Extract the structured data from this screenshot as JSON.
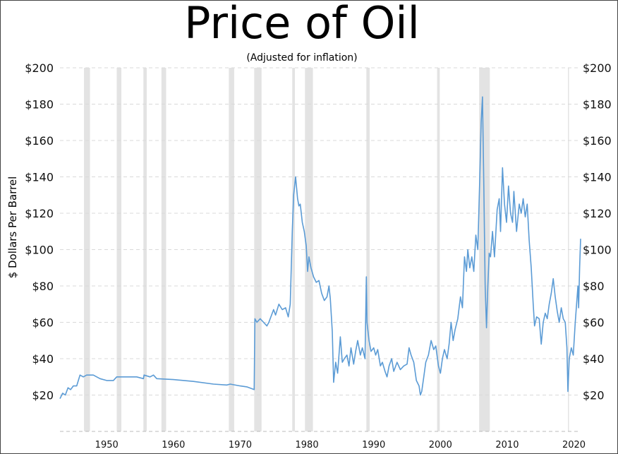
{
  "chart_data": {
    "type": "line",
    "title": "Price of Oil",
    "subtitle": "(Adjusted for inflation)",
    "ylabel": "$ Dollars Per Barrel",
    "xlabel": "",
    "xlim": [
      1943,
      2021
    ],
    "ylim": [
      0,
      200
    ],
    "y_ticks": [
      20,
      40,
      60,
      80,
      100,
      120,
      140,
      160,
      180,
      200
    ],
    "y_tick_labels": [
      "$20",
      "$40",
      "$60",
      "$80",
      "$100",
      "$120",
      "$140",
      "$160",
      "$180",
      "$200"
    ],
    "x_ticks": [
      1950,
      1960,
      1970,
      1980,
      1990,
      2000,
      2010,
      2020
    ],
    "x_tick_labels": [
      "1950",
      "1960",
      "1970",
      "1980",
      "1990",
      "2000",
      "2010",
      "2020"
    ],
    "grid": "horizontal dashed",
    "line_color": "#5b9bd5",
    "recession_color": "#e3e3e3",
    "recessions": [
      [
        1946.6,
        1947.5
      ],
      [
        1951.5,
        1952.2
      ],
      [
        1955.5,
        1956.0
      ],
      [
        1958.2,
        1958.9
      ],
      [
        1968.3,
        1969.1
      ],
      [
        1972.1,
        1973.2
      ],
      [
        1977.8,
        1978.2
      ],
      [
        1979.7,
        1980.9
      ],
      [
        1988.9,
        1989.4
      ],
      [
        1999.5,
        1999.9
      ],
      [
        2005.8,
        2007.4
      ],
      [
        2019.1,
        2019.2
      ]
    ],
    "series": [
      {
        "values": [
          [
            1943.0,
            18
          ],
          [
            1943.4,
            21
          ],
          [
            1943.8,
            20
          ],
          [
            1944.2,
            24
          ],
          [
            1944.6,
            23
          ],
          [
            1945.0,
            25
          ],
          [
            1945.5,
            25
          ],
          [
            1946.0,
            31
          ],
          [
            1946.5,
            30
          ],
          [
            1947.0,
            31
          ],
          [
            1948.0,
            31
          ],
          [
            1949.0,
            29
          ],
          [
            1950.0,
            28
          ],
          [
            1951.0,
            28
          ],
          [
            1951.5,
            30
          ],
          [
            1953.0,
            30
          ],
          [
            1954.5,
            30
          ],
          [
            1955.5,
            29
          ],
          [
            1955.6,
            31
          ],
          [
            1956.5,
            30
          ],
          [
            1957.0,
            31
          ],
          [
            1957.5,
            29
          ],
          [
            1960.0,
            28.5
          ],
          [
            1963.0,
            27.5
          ],
          [
            1966.0,
            26
          ],
          [
            1968.0,
            25.5
          ],
          [
            1968.5,
            26
          ],
          [
            1970.0,
            25
          ],
          [
            1971.0,
            24.5
          ],
          [
            1972.1,
            23
          ],
          [
            1972.2,
            62
          ],
          [
            1972.5,
            60
          ],
          [
            1973.0,
            62
          ],
          [
            1973.5,
            60
          ],
          [
            1974.0,
            58
          ],
          [
            1974.3,
            60
          ],
          [
            1975.0,
            67
          ],
          [
            1975.3,
            64
          ],
          [
            1975.8,
            70
          ],
          [
            1976.3,
            67
          ],
          [
            1976.8,
            68
          ],
          [
            1977.2,
            63
          ],
          [
            1977.5,
            70
          ],
          [
            1977.8,
            110
          ],
          [
            1978.0,
            130
          ],
          [
            1978.3,
            140
          ],
          [
            1978.6,
            128
          ],
          [
            1978.8,
            124
          ],
          [
            1979.0,
            125
          ],
          [
            1979.3,
            115
          ],
          [
            1979.6,
            110
          ],
          [
            1979.9,
            102
          ],
          [
            1980.1,
            88
          ],
          [
            1980.3,
            96
          ],
          [
            1980.6,
            90
          ],
          [
            1981.0,
            85
          ],
          [
            1981.4,
            82
          ],
          [
            1981.8,
            83
          ],
          [
            1982.2,
            76
          ],
          [
            1982.6,
            72
          ],
          [
            1983.0,
            74
          ],
          [
            1983.3,
            80
          ],
          [
            1983.5,
            73
          ],
          [
            1983.8,
            55
          ],
          [
            1984.0,
            27
          ],
          [
            1984.3,
            38
          ],
          [
            1984.6,
            32
          ],
          [
            1985.0,
            52
          ],
          [
            1985.3,
            38
          ],
          [
            1985.6,
            40
          ],
          [
            1986.0,
            42
          ],
          [
            1986.3,
            36
          ],
          [
            1986.6,
            46
          ],
          [
            1987.0,
            37
          ],
          [
            1987.3,
            44
          ],
          [
            1987.6,
            50
          ],
          [
            1988.0,
            42
          ],
          [
            1988.3,
            46
          ],
          [
            1988.7,
            40
          ],
          [
            1988.9,
            85
          ],
          [
            1989.0,
            60
          ],
          [
            1989.3,
            50
          ],
          [
            1989.6,
            44
          ],
          [
            1990.0,
            46
          ],
          [
            1990.3,
            42
          ],
          [
            1990.6,
            45
          ],
          [
            1991.0,
            36
          ],
          [
            1991.3,
            38
          ],
          [
            1991.7,
            33
          ],
          [
            1992.0,
            30
          ],
          [
            1992.3,
            36
          ],
          [
            1992.7,
            40
          ],
          [
            1993.0,
            33
          ],
          [
            1993.5,
            38
          ],
          [
            1994.0,
            34
          ],
          [
            1994.5,
            36
          ],
          [
            1995.0,
            37
          ],
          [
            1995.3,
            46
          ],
          [
            1995.6,
            42
          ],
          [
            1996.0,
            38
          ],
          [
            1996.4,
            28
          ],
          [
            1996.8,
            25
          ],
          [
            1997.0,
            20
          ],
          [
            1997.2,
            22
          ],
          [
            1997.5,
            30
          ],
          [
            1997.8,
            38
          ],
          [
            1998.2,
            42
          ],
          [
            1998.6,
            50
          ],
          [
            1999.0,
            45
          ],
          [
            1999.3,
            47
          ],
          [
            1999.7,
            36
          ],
          [
            2000.0,
            32
          ],
          [
            2000.3,
            40
          ],
          [
            2000.6,
            45
          ],
          [
            2001.0,
            40
          ],
          [
            2001.3,
            48
          ],
          [
            2001.6,
            60
          ],
          [
            2001.9,
            50
          ],
          [
            2002.2,
            56
          ],
          [
            2002.6,
            62
          ],
          [
            2003.0,
            74
          ],
          [
            2003.3,
            68
          ],
          [
            2003.6,
            96
          ],
          [
            2003.9,
            88
          ],
          [
            2004.1,
            100
          ],
          [
            2004.4,
            90
          ],
          [
            2004.7,
            96
          ],
          [
            2005.0,
            88
          ],
          [
            2005.3,
            108
          ],
          [
            2005.6,
            100
          ],
          [
            2005.9,
            140
          ],
          [
            2006.1,
            170
          ],
          [
            2006.3,
            184
          ],
          [
            2006.5,
            135
          ],
          [
            2006.7,
            80
          ],
          [
            2006.9,
            57
          ],
          [
            2007.1,
            80
          ],
          [
            2007.3,
            98
          ],
          [
            2007.5,
            96
          ],
          [
            2007.8,
            110
          ],
          [
            2008.1,
            96
          ],
          [
            2008.5,
            122
          ],
          [
            2008.8,
            128
          ],
          [
            2009.0,
            110
          ],
          [
            2009.3,
            145
          ],
          [
            2009.6,
            125
          ],
          [
            2009.9,
            115
          ],
          [
            2010.2,
            135
          ],
          [
            2010.5,
            120
          ],
          [
            2010.8,
            115
          ],
          [
            2011.0,
            132
          ],
          [
            2011.4,
            110
          ],
          [
            2011.8,
            125
          ],
          [
            2012.1,
            120
          ],
          [
            2012.4,
            128
          ],
          [
            2012.7,
            118
          ],
          [
            2013.0,
            125
          ],
          [
            2013.3,
            105
          ],
          [
            2013.6,
            90
          ],
          [
            2013.9,
            70
          ],
          [
            2014.1,
            58
          ],
          [
            2014.4,
            63
          ],
          [
            2014.8,
            62
          ],
          [
            2015.1,
            48
          ],
          [
            2015.4,
            60
          ],
          [
            2015.7,
            65
          ],
          [
            2016.0,
            62
          ],
          [
            2016.3,
            70
          ],
          [
            2016.6,
            76
          ],
          [
            2016.9,
            84
          ],
          [
            2017.2,
            74
          ],
          [
            2017.5,
            66
          ],
          [
            2017.8,
            60
          ],
          [
            2018.1,
            68
          ],
          [
            2018.4,
            62
          ],
          [
            2018.7,
            60
          ],
          [
            2018.95,
            46
          ],
          [
            2019.1,
            22
          ],
          [
            2019.3,
            40
          ],
          [
            2019.6,
            46
          ],
          [
            2019.9,
            42
          ],
          [
            2020.2,
            60
          ],
          [
            2020.4,
            70
          ],
          [
            2020.6,
            80
          ],
          [
            2020.7,
            68
          ],
          [
            2020.85,
            90
          ],
          [
            2021.0,
            106
          ]
        ]
      }
    ]
  }
}
